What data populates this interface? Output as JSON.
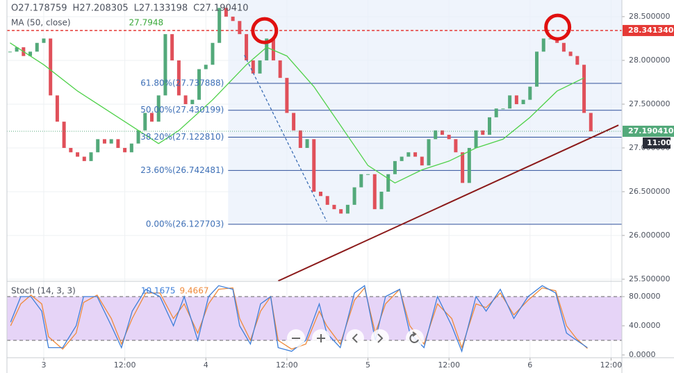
{
  "chart_data": {
    "type": "candlestick",
    "ohlc": [
      "O27.178759",
      "H27.208305",
      "L27.133198",
      "C27.190410"
    ],
    "up_color": "#53a97a",
    "down_color": "#e0505a",
    "xlim": [
      -5.45,
      85.6
    ],
    "xticks": [
      {
        "value": 0,
        "label": "3"
      },
      {
        "value": 12,
        "label": "12:00"
      },
      {
        "value": 24,
        "label": "4"
      },
      {
        "value": 36,
        "label": "12:00"
      },
      {
        "value": 48,
        "label": "5"
      },
      {
        "value": 60,
        "label": "12:00"
      },
      {
        "value": 72,
        "label": "6"
      },
      {
        "value": 84,
        "label": "12:00"
      }
    ],
    "ylim": [
      25.476,
      28.69
    ],
    "yticks": [
      {
        "value": 28.5,
        "label": "28.500000"
      },
      {
        "value": 28.0,
        "label": "28.000000"
      },
      {
        "value": 27.5,
        "label": "27.500000"
      },
      {
        "value": 27.0,
        "label": "27.000000"
      },
      {
        "value": 26.5,
        "label": "26.500000"
      },
      {
        "value": 26.0,
        "label": "26.000000"
      },
      {
        "value": 25.5,
        "label": "25.500000"
      }
    ],
    "grid": true,
    "x": [
      -5,
      -4,
      -3,
      -2,
      -1,
      0,
      1,
      2,
      3,
      4,
      5,
      6,
      7,
      8,
      9,
      10,
      11,
      12,
      13,
      14,
      15,
      16,
      17,
      18,
      19,
      20,
      21,
      22,
      23,
      24,
      25,
      26,
      27,
      28,
      29,
      30,
      31,
      32,
      33,
      34,
      35,
      36,
      37,
      38,
      39,
      40,
      41,
      42,
      43,
      44,
      45,
      46,
      47,
      48,
      49,
      50,
      51,
      52,
      53,
      54,
      55,
      56,
      57,
      58,
      59,
      60,
      61,
      62,
      63,
      64,
      65,
      66,
      67,
      68,
      69,
      70,
      71,
      72,
      73,
      74,
      75,
      76,
      77,
      78,
      79,
      80,
      81
    ],
    "close": [
      28.1,
      28.15,
      28.05,
      28.1,
      28.2,
      28.25,
      27.6,
      27.3,
      27.0,
      26.95,
      26.9,
      26.85,
      26.95,
      27.1,
      27.05,
      27.1,
      27.0,
      26.95,
      27.05,
      27.2,
      27.4,
      27.3,
      27.6,
      28.3,
      28.0,
      27.6,
      27.5,
      27.55,
      27.9,
      27.95,
      28.2,
      28.6,
      28.5,
      28.45,
      28.3,
      28.0,
      27.85,
      28.0,
      28.25,
      28.0,
      27.8,
      27.4,
      27.2,
      27.0,
      27.1,
      26.5,
      26.45,
      26.35,
      26.3,
      26.25,
      26.35,
      26.55,
      26.7,
      26.7,
      26.3,
      26.5,
      26.7,
      26.85,
      26.9,
      26.95,
      26.9,
      26.8,
      27.1,
      27.2,
      27.15,
      27.1,
      26.95,
      26.6,
      27.0,
      27.2,
      27.15,
      27.35,
      27.45,
      27.45,
      27.6,
      27.5,
      27.55,
      27.7,
      28.1,
      28.25,
      28.25,
      28.2,
      28.1,
      28.05,
      27.95,
      27.4,
      27.19
    ],
    "ma": {
      "label": "MA (50, close)",
      "last": 27.7948,
      "color": "#4fd14a",
      "x": [
        -5,
        0,
        5,
        10,
        15,
        17,
        20,
        25,
        30,
        33,
        36,
        40,
        44,
        48,
        52,
        56,
        60,
        64,
        68,
        72,
        76,
        80
      ],
      "values": [
        28.2,
        27.95,
        27.65,
        27.4,
        27.15,
        27.05,
        27.2,
        27.55,
        27.95,
        28.15,
        28.05,
        27.7,
        27.25,
        26.8,
        26.6,
        26.75,
        26.85,
        27.0,
        27.1,
        27.35,
        27.65,
        27.8
      ]
    },
    "fib_x": 27.3,
    "fib": [
      {
        "label": "61.80%(27.737888)",
        "value": 27.737888
      },
      {
        "label": "50.00%(27.430199)",
        "value": 27.430199
      },
      {
        "label": "38.20%(27.122810)",
        "value": 27.12281
      },
      {
        "label": "23.60%(26.742481)",
        "value": 26.742481
      },
      {
        "label": "0.00%(26.127703)",
        "value": 26.127703
      }
    ],
    "fib_color": "#2f4f9a",
    "resistance": {
      "value": 28.34134,
      "label": "28.341340",
      "color": "#e53935"
    },
    "last_price": {
      "value": 27.19041,
      "label": "27.190410",
      "time": "11:00",
      "color": "#53a97a"
    },
    "trendline": {
      "x": [
        34.7,
        85.1
      ],
      "y": [
        25.48,
        27.26
      ],
      "color": "#8b1a1a"
    },
    "dashed_line": {
      "x": [
        29.7,
        41.9
      ],
      "y": [
        28.06,
        26.16
      ],
      "color": "#3d6fb6"
    },
    "circles": {
      "x": [
        32.7,
        76.1
      ],
      "y": [
        28.34,
        28.38
      ],
      "color": "#e01010"
    },
    "stoch": {
      "label": "Stoch (14, 3, 3)",
      "ylim": [
        -3.8,
        101
      ],
      "yticks": [
        {
          "value": 80,
          "label": "80.0000"
        },
        {
          "value": 40,
          "label": "40.0000"
        },
        {
          "value": 0,
          "label": "0.0000"
        }
      ],
      "bands": [
        80,
        20
      ],
      "band_color": "#e6d4f7",
      "x": [
        -4.9,
        -3.4,
        -1.9,
        -0.3,
        0.7,
        2.8,
        4.8,
        5.9,
        7.9,
        10.0,
        11.5,
        13.1,
        15.1,
        17.2,
        19.2,
        20.8,
        22.8,
        24.4,
        25.9,
        28.0,
        29.0,
        30.6,
        32.1,
        33.6,
        34.7,
        36.7,
        38.8,
        40.8,
        41.9,
        43.9,
        46.0,
        47.5,
        49.1,
        50.6,
        52.7,
        54.2,
        56.3,
        58.3,
        60.4,
        61.9,
        64.0,
        65.5,
        67.6,
        69.6,
        71.7,
        73.8,
        75.8,
        77.4,
        78.9,
        80.5
      ],
      "k": {
        "last": 10.1675,
        "color": "#3e7fd9",
        "values": [
          45,
          80,
          80,
          60,
          10,
          10,
          40,
          80,
          80,
          40,
          10,
          60,
          90,
          80,
          40,
          80,
          20,
          80,
          95,
          90,
          40,
          15,
          70,
          80,
          10,
          5,
          20,
          70,
          30,
          10,
          85,
          95,
          20,
          80,
          90,
          30,
          10,
          80,
          40,
          5,
          80,
          60,
          90,
          50,
          80,
          95,
          85,
          30,
          20,
          10
        ]
      },
      "d": {
        "last": 9.4667,
        "color": "#ef8a3a",
        "values": [
          40,
          70,
          82,
          70,
          25,
          8,
          30,
          72,
          82,
          50,
          15,
          50,
          85,
          85,
          50,
          70,
          30,
          70,
          90,
          92,
          50,
          20,
          60,
          80,
          20,
          8,
          15,
          60,
          40,
          15,
          75,
          92,
          30,
          70,
          90,
          40,
          15,
          70,
          50,
          10,
          70,
          65,
          85,
          55,
          75,
          92,
          88,
          40,
          22,
          9
        ]
      }
    }
  }
}
